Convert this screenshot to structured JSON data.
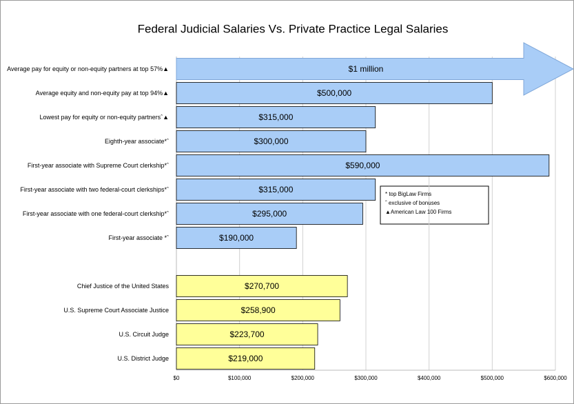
{
  "chart_data": {
    "type": "bar",
    "orientation": "horizontal",
    "title": "Federal Judicial Salaries Vs. Private Practice Legal Salaries",
    "categories": [
      "Average pay for equity or non-equity partners at top 57%▲",
      "Average equity and non-equity pay at top 94%▲",
      "Lowest pay for equity or non-equity partnersˆ▲",
      "Eighth-year associate*ˆ",
      "First-year associate with Supreme Court clerkship*ˆ",
      "First-year associate with two federal-court clerkships*ˆ",
      "First-year associate with one federal-court clerkship*ˆ",
      "First-year associate *ˆ",
      null,
      "Chief Justice of the United States",
      "U.S. Supreme Court Associate Justice",
      "U.S. Circuit Judge",
      "U.S. District Judge"
    ],
    "values": [
      1000000,
      500000,
      315000,
      300000,
      590000,
      315000,
      295000,
      190000,
      null,
      270700,
      258900,
      223700,
      219000
    ],
    "value_labels": [
      "$1 million",
      "$500,000",
      "$315,000",
      "$300,000",
      "$590,000",
      "$315,000",
      "$295,000",
      "$190,000",
      null,
      "$270,700",
      "$258,900",
      "$223,700",
      "$219,000"
    ],
    "colors": [
      "#a9cdf7",
      "#a9cdf7",
      "#a9cdf7",
      "#a9cdf7",
      "#a9cdf7",
      "#a9cdf7",
      "#a9cdf7",
      "#a9cdf7",
      null,
      "#ffff99",
      "#ffff99",
      "#ffff99",
      "#ffff99"
    ],
    "xlim": [
      0,
      600000
    ],
    "xticks": [
      {
        "value": 0,
        "label": "$0"
      },
      {
        "value": 100000,
        "label": "$100,000"
      },
      {
        "value": 200000,
        "label": "$200,000"
      },
      {
        "value": 300000,
        "label": "$300,000"
      },
      {
        "value": 400000,
        "label": "$400,000"
      },
      {
        "value": 500000,
        "label": "$500,000"
      },
      {
        "value": 600000,
        "label": "$600,000"
      }
    ],
    "grid": true,
    "notes": [
      "* top BigLaw Firms",
      "ˆ exclusive  of bonuses",
      "▲American Law 100 Firms"
    ]
  }
}
